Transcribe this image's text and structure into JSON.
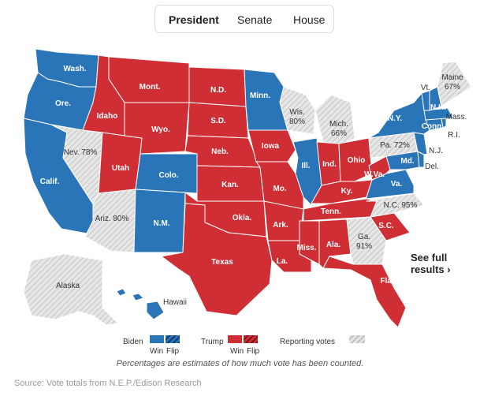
{
  "tabs": [
    {
      "label": "President",
      "active": true
    },
    {
      "label": "Senate",
      "active": false
    },
    {
      "label": "House",
      "active": false
    }
  ],
  "colors": {
    "biden": "#2a74b8",
    "trump": "#cf2e34",
    "reporting": "#d9d9d9",
    "uncalled": "#e8e8e8"
  },
  "states": {
    "wash": "Wash.",
    "ore": "Ore.",
    "calif": "Calif.",
    "idaho": "Idaho",
    "nev": "Nev. 78%",
    "utah": "Utah",
    "ariz": "Ariz. 80%",
    "mont": "Mont.",
    "wyo": "Wyo.",
    "colo": "Colo.",
    "nm": "N.M.",
    "nd": "N.D.",
    "sd": "S.D.",
    "neb": "Neb.",
    "kan": "Kan.",
    "okla": "Okla.",
    "texas": "Texas",
    "minn": "Minn.",
    "iowa": "Iowa",
    "mo": "Mo.",
    "ark": "Ark.",
    "la": "La.",
    "wis": "Wis.\n80%",
    "ill": "Ill.",
    "mich": "Mich.\n66%",
    "ind": "Ind.",
    "ohio": "Ohio",
    "ky": "Ky.",
    "tenn": "Tenn.",
    "miss": "Miss.",
    "ala": "Ala.",
    "ga": "Ga.\n91%",
    "fla": "Fla.",
    "sc": "S.C.",
    "nc": "N.C. 95%",
    "va": "Va.",
    "wva": "W.Va.",
    "md": "Md.",
    "del": "Del.",
    "pa": "Pa. 72%",
    "ny": "N.Y.",
    "nj": "N.J.",
    "conn": "Conn.",
    "ri": "R.I.",
    "mass": "Mass.",
    "vt": "Vt.",
    "nh": "N.H.",
    "maine": "Maine\n67%",
    "alaska": "Alaska",
    "hawaii": "Hawaii"
  },
  "see_full_results": "See full\nresults ›",
  "legend": {
    "biden": "Biden",
    "trump": "Trump",
    "win": "Win",
    "flip": "Flip",
    "reporting": "Reporting votes"
  },
  "note": "Percentages are estimates of how much vote has been counted.",
  "source": "Source: Vote totals from N.E.P./Edison Research"
}
